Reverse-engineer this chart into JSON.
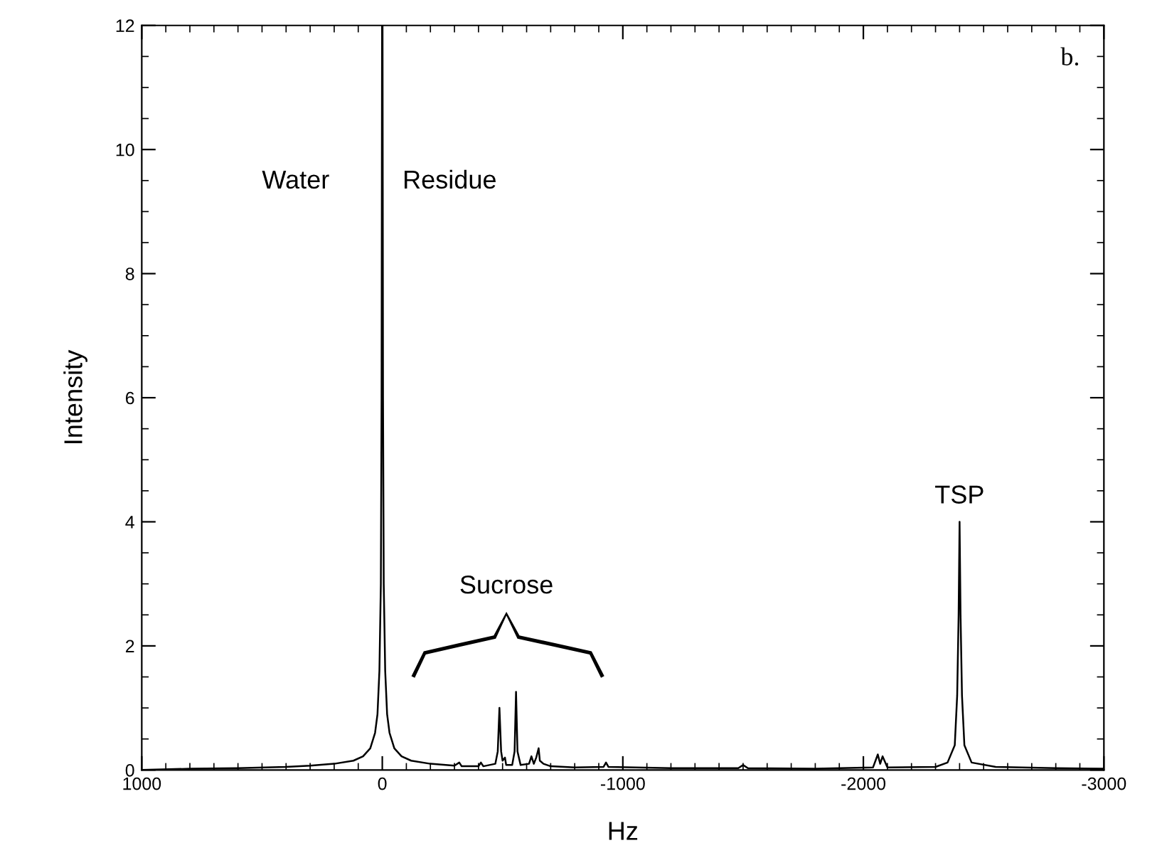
{
  "chart_data": {
    "type": "line",
    "xlabel": "Hz",
    "ylabel": "Intensity",
    "xlim": [
      1000,
      -3000
    ],
    "xticks": [
      1000,
      0,
      -1000,
      -2000,
      -3000
    ],
    "ylim": [
      0,
      12
    ],
    "yticks": [
      0,
      2,
      4,
      6,
      8,
      10,
      12
    ],
    "grid": false,
    "legend": false,
    "marker": "none",
    "line_style": "solid",
    "x": [
      1000,
      800,
      600,
      400,
      300,
      200,
      120,
      80,
      50,
      30,
      20,
      12,
      6,
      3,
      1,
      0,
      -1,
      -3,
      -6,
      -12,
      -20,
      -30,
      -50,
      -80,
      -120,
      -200,
      -300,
      -320,
      -330,
      -400,
      -410,
      -420,
      -470,
      -480,
      -487,
      -494,
      -500,
      -510,
      -515,
      -540,
      -550,
      -556,
      -562,
      -575,
      -610,
      -620,
      -630,
      -640,
      -650,
      -655,
      -670,
      -700,
      -800,
      -920,
      -930,
      -940,
      -1200,
      -1480,
      -1500,
      -1520,
      -1800,
      -2040,
      -2060,
      -2070,
      -2080,
      -2100,
      -2300,
      -2350,
      -2380,
      -2390,
      -2396,
      -2400,
      -2404,
      -2410,
      -2420,
      -2450,
      -2550,
      -2800,
      -3000
    ],
    "series": [
      {
        "color": "#000000",
        "values": [
          0,
          0.02,
          0.03,
          0.05,
          0.07,
          0.1,
          0.15,
          0.22,
          0.35,
          0.6,
          0.9,
          1.6,
          3,
          6,
          12,
          12,
          12,
          6,
          3,
          1.6,
          0.9,
          0.6,
          0.35,
          0.22,
          0.15,
          0.1,
          0.07,
          0.12,
          0.06,
          0.06,
          0.12,
          0.06,
          0.1,
          0.3,
          1.0,
          0.3,
          0.15,
          0.2,
          0.08,
          0.08,
          0.3,
          1.26,
          0.3,
          0.08,
          0.1,
          0.22,
          0.1,
          0.2,
          0.35,
          0.15,
          0.1,
          0.06,
          0.04,
          0.05,
          0.12,
          0.05,
          0.03,
          0.03,
          0.08,
          0.03,
          0.02,
          0.04,
          0.25,
          0.1,
          0.22,
          0.04,
          0.05,
          0.12,
          0.4,
          1.2,
          2.5,
          4.0,
          2.5,
          1.2,
          0.4,
          0.12,
          0.05,
          0.03,
          0.02
        ]
      }
    ],
    "annotations": [
      "Water",
      "Residue",
      "Sucrose",
      "TSP",
      "b."
    ]
  }
}
